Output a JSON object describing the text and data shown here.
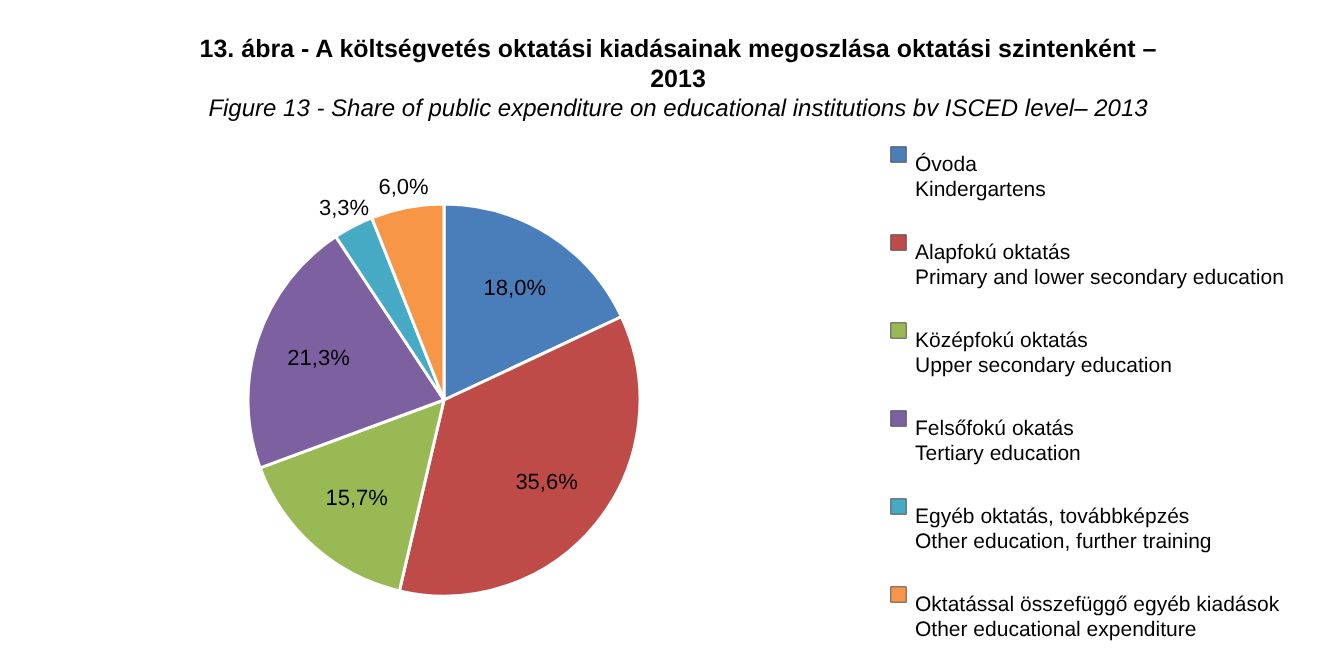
{
  "chart_data": {
    "type": "pie",
    "title": "13. ábra - A költségvetés oktatási kiadásainak megoszlása oktatási szintenként –\n2013",
    "subtitle": "Figure 13 - Share of public expenditure on educational institutions  bv ISCED level– 2013",
    "categories": [
      "Óvoda\nKindergartens",
      "Alapfokú oktatás\nPrimary and lower secondary education",
      "Középfokú oktatás\nUpper secondary education",
      "Felsőfokú okatás\nTertiary education",
      "Egyéb oktatás, továbbképzés\nOther education, further training",
      "Oktatással összefüggő egyéb kiadások\nOther educational expenditure"
    ],
    "values": [
      18.0,
      35.6,
      15.7,
      21.3,
      3.3,
      6.0
    ],
    "value_labels": [
      "18,0%",
      "35,6%",
      "15,7%",
      "21,3%",
      "3,3%",
      "6,0%"
    ],
    "colors": [
      "#4a7ebb",
      "#be4b48",
      "#98b954",
      "#7d60a0",
      "#46aac5",
      "#f79646"
    ],
    "legend": "right"
  }
}
